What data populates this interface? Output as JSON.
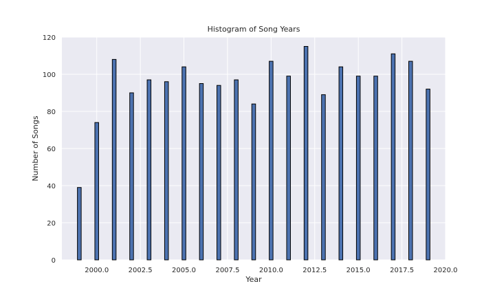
{
  "chart_data": {
    "type": "bar",
    "title": "Histogram of Song Years",
    "xlabel": "Year",
    "ylabel": "Number of Songs",
    "x": [
      1999,
      2000,
      2001,
      2002,
      2003,
      2004,
      2005,
      2006,
      2007,
      2008,
      2009,
      2010,
      2011,
      2012,
      2013,
      2014,
      2015,
      2016,
      2017,
      2018,
      2019
    ],
    "values": [
      39,
      74,
      108,
      90,
      97,
      96,
      104,
      95,
      94,
      97,
      84,
      107,
      99,
      115,
      89,
      104,
      99,
      99,
      111,
      107,
      92
    ],
    "xlim": [
      1998.0,
      2020.0
    ],
    "ylim": [
      0,
      120
    ],
    "xticks": [
      2000.0,
      2002.5,
      2005.0,
      2007.5,
      2010.0,
      2012.5,
      2015.0,
      2017.5,
      2020.0
    ],
    "xtick_labels": [
      "2000.0",
      "2002.5",
      "2005.0",
      "2007.5",
      "2010.0",
      "2012.5",
      "2015.0",
      "2017.5",
      "2020.0"
    ],
    "yticks": [
      0,
      20,
      40,
      60,
      80,
      100,
      120
    ],
    "ytick_labels": [
      "0",
      "20",
      "40",
      "60",
      "80",
      "100",
      "120"
    ],
    "grid": true,
    "bar_color": "#4c72b0",
    "bar_edge_color": "#000000",
    "plot_background": "#eaeaf2"
  }
}
